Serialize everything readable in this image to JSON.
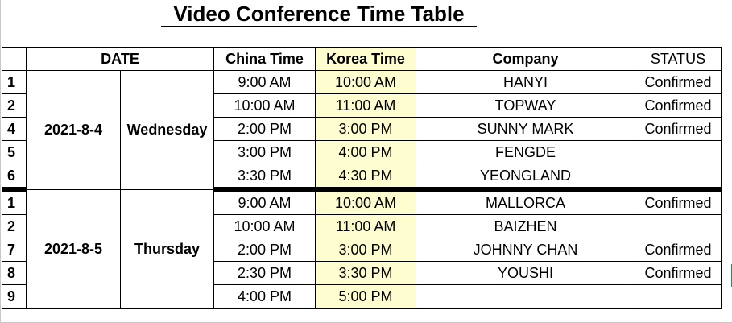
{
  "title": "Video Conference Time Table",
  "colors": {
    "korea_highlight": "#fdfdd0",
    "grid": "#000000"
  },
  "headers": {
    "date": "DATE",
    "china": "China Time",
    "korea": "Korea Time",
    "company": "Company",
    "status": "STATUS"
  },
  "blocks": [
    {
      "date": "2021-8-4",
      "day": "Wednesday",
      "rows": [
        {
          "idx": "1",
          "china": "9:00 AM",
          "korea": "10:00 AM",
          "company": "HANYI",
          "status": "Confirmed"
        },
        {
          "idx": "2",
          "china": "10:00 AM",
          "korea": "11:00 AM",
          "company": "TOPWAY",
          "status": "Confirmed"
        },
        {
          "idx": "4",
          "china": "2:00 PM",
          "korea": "3:00 PM",
          "company": "SUNNY MARK",
          "status": "Confirmed"
        },
        {
          "idx": "5",
          "china": "3:00 PM",
          "korea": "4:00 PM",
          "company": "FENGDE",
          "status": ""
        },
        {
          "idx": "6",
          "china": "3:30 PM",
          "korea": "4:30 PM",
          "company": "YEONGLAND",
          "status": ""
        }
      ]
    },
    {
      "date": "2021-8-5",
      "day": "Thursday",
      "rows": [
        {
          "idx": "1",
          "china": "9:00 AM",
          "korea": "10:00 AM",
          "company": "MALLORCA",
          "status": "Confirmed"
        },
        {
          "idx": "2",
          "china": "10:00 AM",
          "korea": "11:00 AM",
          "company": "BAIZHEN",
          "status": ""
        },
        {
          "idx": "7",
          "china": "2:00 PM",
          "korea": "3:00 PM",
          "company": "JOHNNY CHAN",
          "status": "Confirmed"
        },
        {
          "idx": "8",
          "china": "2:30 PM",
          "korea": "3:30 PM",
          "company": "YOUSHI",
          "status": "Confirmed"
        },
        {
          "idx": "9",
          "china": "4:00 PM",
          "korea": "5:00 PM",
          "company": "",
          "status": ""
        }
      ]
    }
  ]
}
